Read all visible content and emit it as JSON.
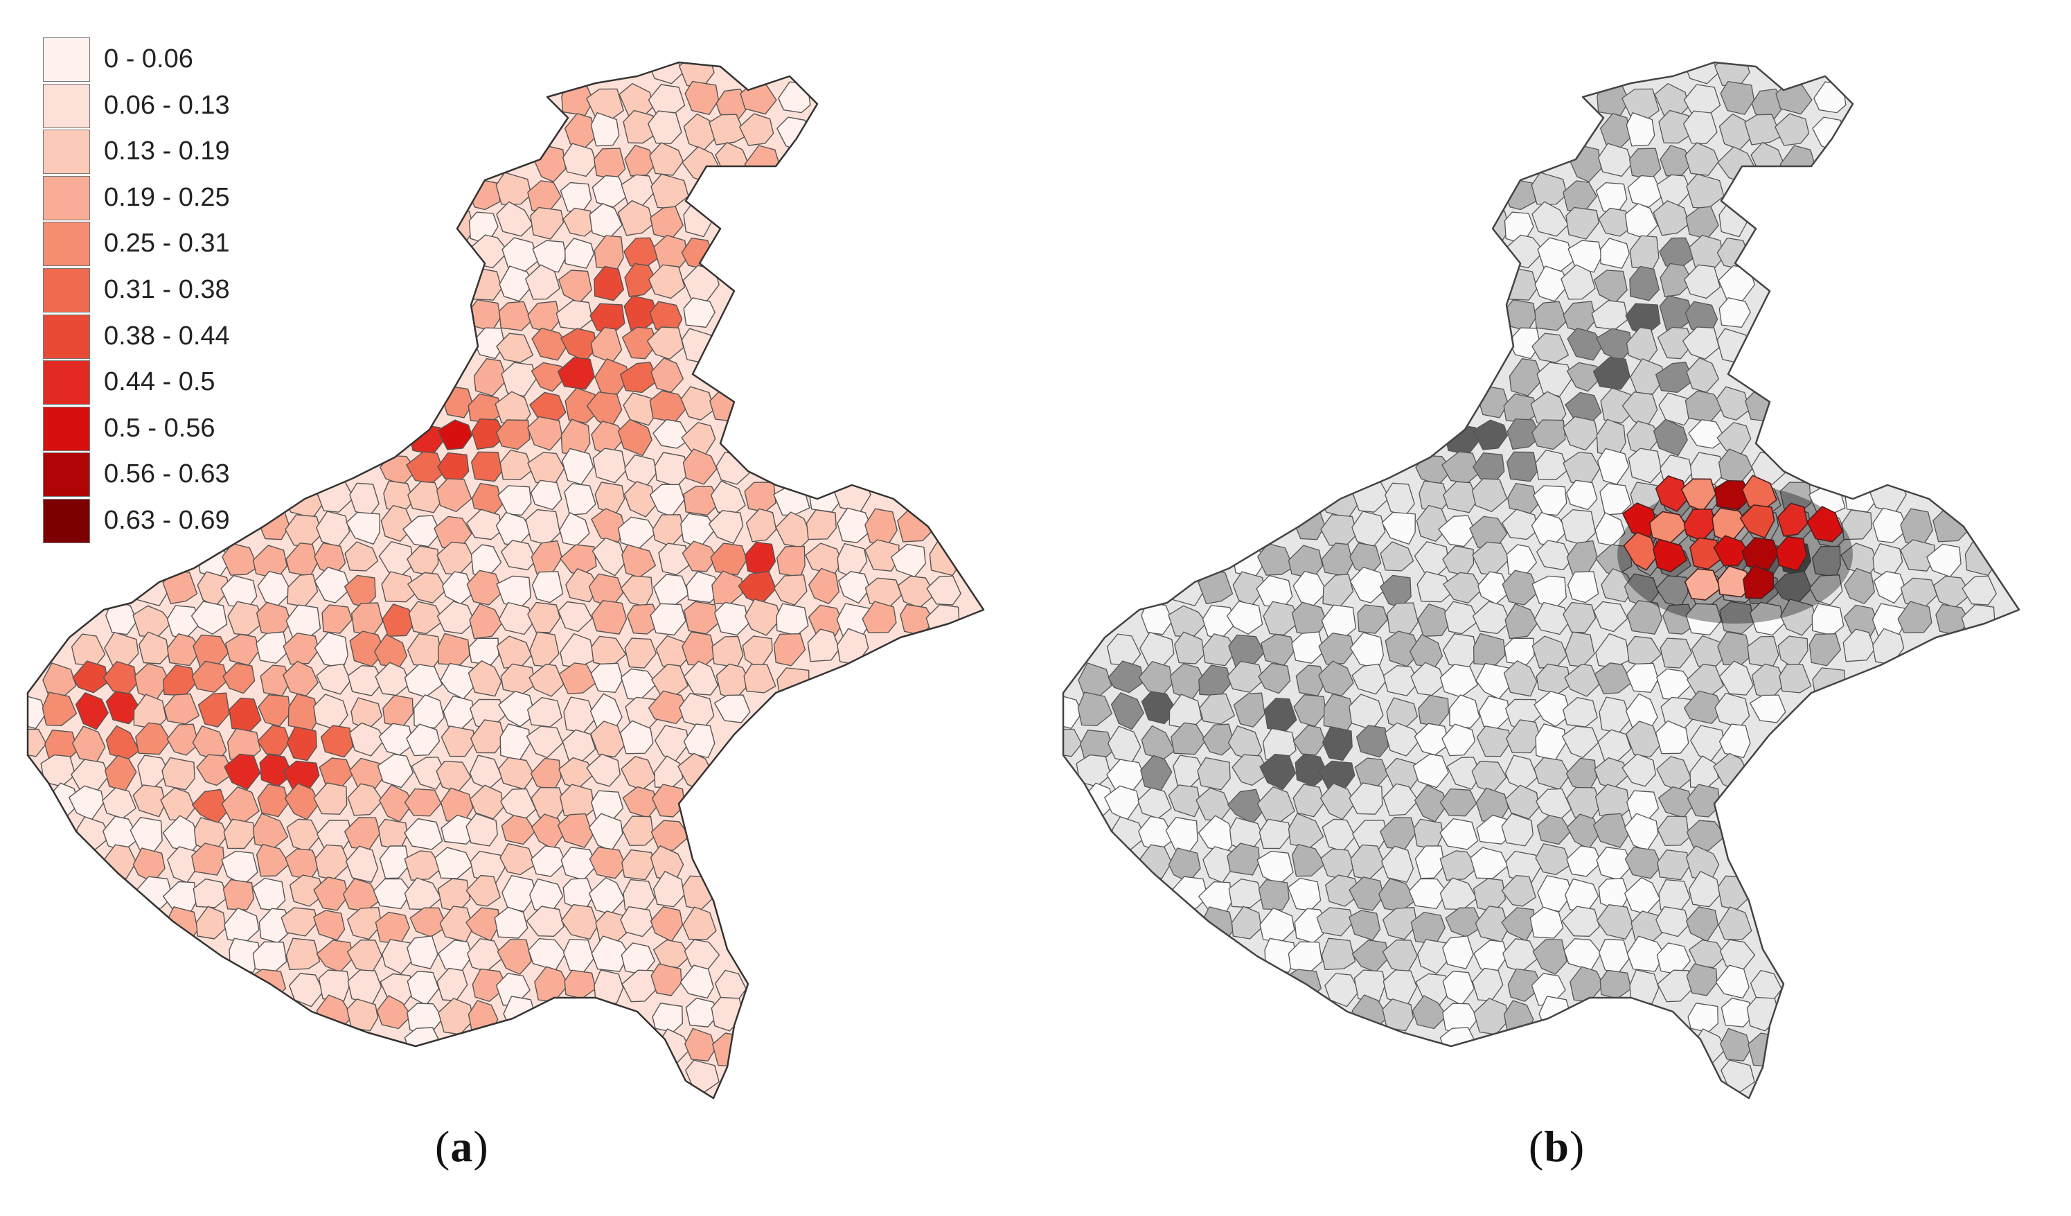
{
  "figure": {
    "panel_a_caption": {
      "open": "(",
      "letter": "a",
      "close": ")"
    },
    "panel_b_caption": {
      "open": "(",
      "letter": "b",
      "close": ")"
    }
  },
  "legend": [
    {
      "label": "0 - 0.06",
      "color": "#fff1ee"
    },
    {
      "label": "0.06 - 0.13",
      "color": "#fde0d7"
    },
    {
      "label": "0.13 - 0.19",
      "color": "#fccab8"
    },
    {
      "label": "0.19 - 0.25",
      "color": "#f9ad96"
    },
    {
      "label": "0.25 - 0.31",
      "color": "#f48d71"
    },
    {
      "label": "0.31 - 0.38",
      "color": "#ef6a4e"
    },
    {
      "label": "0.38 - 0.44",
      "color": "#e94a35"
    },
    {
      "label": "0.44 - 0.5",
      "color": "#e32a22"
    },
    {
      "label": "0.5 - 0.56",
      "color": "#d7100f"
    },
    {
      "label": "0.56 - 0.63",
      "color": "#b00506"
    },
    {
      "label": "0.63 - 0.69",
      "color": "#7d0000"
    }
  ],
  "map_colors": {
    "outline": "#555555",
    "gray_scale": [
      "#fbfbfb",
      "#e6e6e6",
      "#cfcfcf",
      "#b3b3b3",
      "#8c8c8c",
      "#5e5e5e",
      "#2e2e2e"
    ]
  }
}
